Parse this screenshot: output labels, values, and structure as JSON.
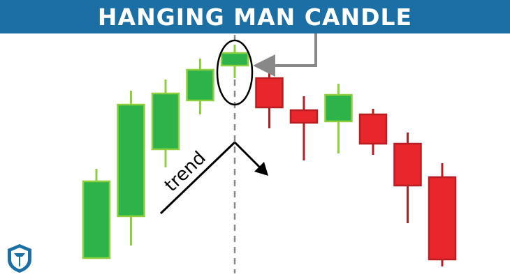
{
  "header": {
    "title": "HANGING MAN CANDLE"
  },
  "annotation": {
    "trend_label": "trend"
  },
  "colors": {
    "banner": "#1b6fa5",
    "bull_fill": "#2db34a",
    "bull_border": "#8dcf3f",
    "bear_fill": "#e8262c",
    "bear_border": "#b81d22",
    "divider": "#8a8a8a",
    "arrow": "#888888",
    "ink": "#000000"
  },
  "icons": {
    "logo": "shield-logo-icon"
  },
  "candles": [
    {
      "direction": "up",
      "open": 12,
      "close": 122,
      "high": 140,
      "low": 12
    },
    {
      "direction": "up",
      "open": 72,
      "close": 232,
      "high": 252,
      "low": 30
    },
    {
      "direction": "up",
      "open": 168,
      "close": 248,
      "high": 268,
      "low": 142
    },
    {
      "direction": "up",
      "open": 238,
      "close": 282,
      "high": 298,
      "low": 218
    },
    {
      "direction": "up",
      "open": 288,
      "close": 306,
      "high": 318,
      "low": 270
    },
    {
      "direction": "down",
      "open": 270,
      "close": 228,
      "high": 282,
      "low": 198
    },
    {
      "direction": "down",
      "open": 224,
      "close": 206,
      "high": 244,
      "low": 152
    },
    {
      "direction": "up",
      "open": 208,
      "close": 246,
      "high": 262,
      "low": 162
    },
    {
      "direction": "down",
      "open": 218,
      "close": 176,
      "high": 226,
      "low": 160
    },
    {
      "direction": "down",
      "open": 176,
      "close": 116,
      "high": 192,
      "low": 62
    },
    {
      "direction": "down",
      "open": 128,
      "close": 10,
      "high": 148,
      "low": 0
    }
  ],
  "highlight_index": 4
}
